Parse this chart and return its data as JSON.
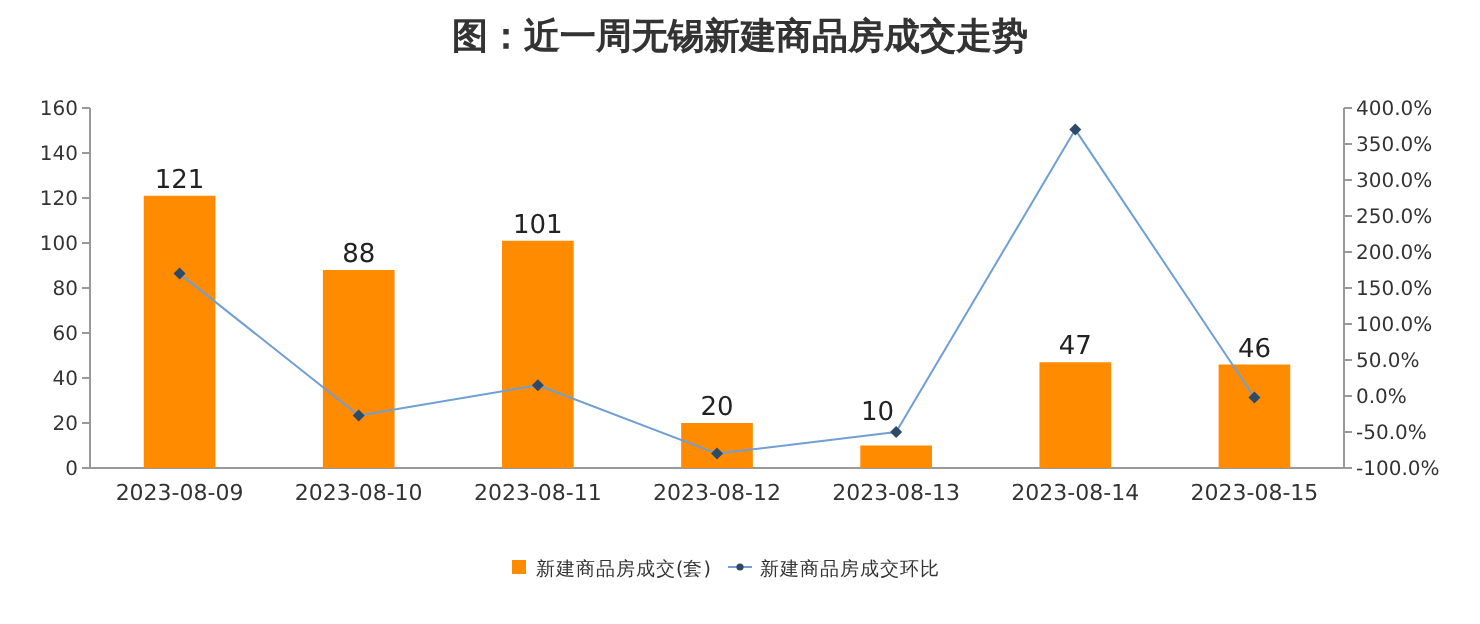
{
  "chart_data": {
    "type": "bar",
    "title": "图：近一周无锡新建商品房成交走势",
    "categories": [
      "2023-08-09",
      "2023-08-10",
      "2023-08-11",
      "2023-08-12",
      "2023-08-13",
      "2023-08-14",
      "2023-08-15"
    ],
    "series": [
      {
        "name": "新建商品房成交(套)",
        "color": "#ff8c00",
        "values": [
          121,
          88,
          101,
          20,
          10,
          47,
          46
        ],
        "value_labels": [
          "121",
          "88",
          "101",
          "20",
          "10",
          "47",
          "46"
        ]
      },
      {
        "name": "新建商品房成交环比",
        "type": "line",
        "axis": "y2",
        "color": "#6f9fd4",
        "marker": "diamond",
        "line_style": "solid",
        "values": [
          170,
          -27,
          15,
          -80,
          -50,
          370,
          -2
        ]
      }
    ],
    "ylim": [
      0,
      160
    ],
    "yticks": [
      0,
      20,
      40,
      60,
      80,
      100,
      120,
      140,
      160
    ],
    "y2lim": [
      -100,
      400
    ],
    "y2ticks": [
      {
        "value": -100,
        "label": "-100.0%"
      },
      {
        "value": -50,
        "label": "-50.0%"
      },
      {
        "value": 0,
        "label": "0.0%"
      },
      {
        "value": 50,
        "label": "50.0%"
      },
      {
        "value": 100,
        "label": "100.0%"
      },
      {
        "value": 150,
        "label": "150.0%"
      },
      {
        "value": 200,
        "label": "200.0%"
      },
      {
        "value": 250,
        "label": "250.0%"
      },
      {
        "value": 300,
        "label": "300.0%"
      },
      {
        "value": 350,
        "label": "350.0%"
      },
      {
        "value": 400,
        "label": "400.0%"
      }
    ],
    "grid": false,
    "legend": "bottom"
  }
}
